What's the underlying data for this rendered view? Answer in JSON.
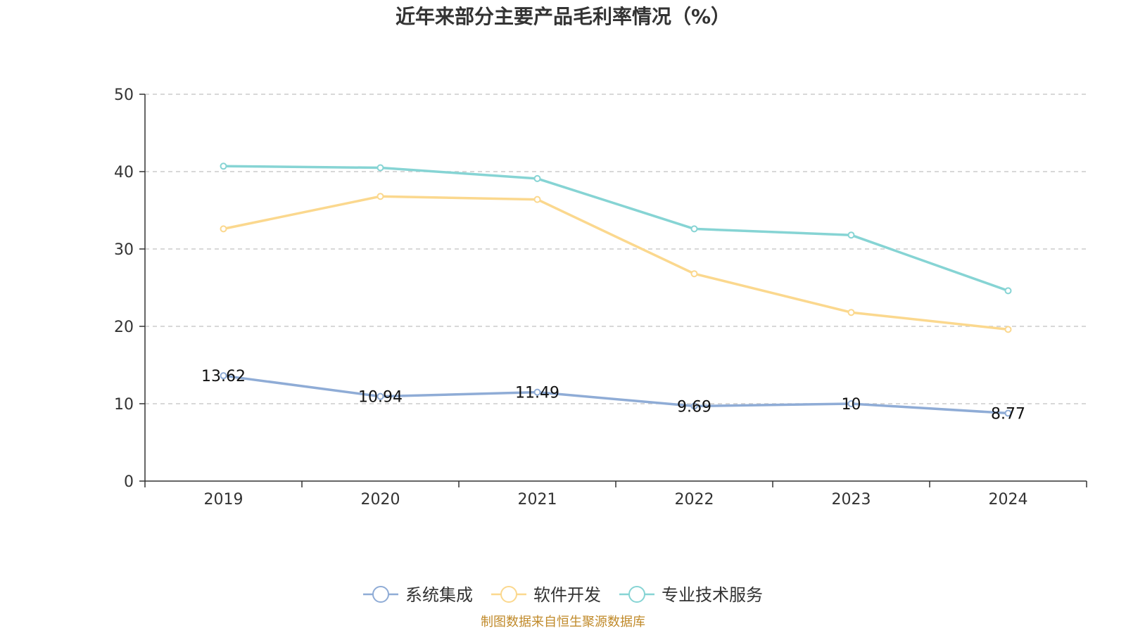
{
  "chart_data": {
    "type": "line",
    "title": "近年来部分主要产品毛利率情况（%）",
    "categories": [
      "2019",
      "2020",
      "2021",
      "2022",
      "2023",
      "2024"
    ],
    "ylim": [
      0,
      50
    ],
    "yticks": [
      0,
      10,
      20,
      30,
      40,
      50
    ],
    "grid": true,
    "legend_position": "bottom-center",
    "series": [
      {
        "name": "系统集成",
        "color": "#8facd6",
        "values": [
          13.62,
          10.94,
          11.49,
          9.69,
          10,
          8.77
        ],
        "data_labels": [
          "13.62",
          "10.94",
          "11.49",
          "9.69",
          "10",
          "8.77"
        ]
      },
      {
        "name": "软件开发",
        "color": "#fbd88e",
        "values": [
          32.6,
          36.8,
          36.4,
          26.8,
          21.8,
          19.6
        ]
      },
      {
        "name": "专业技术服务",
        "color": "#86d4d4",
        "values": [
          40.7,
          40.5,
          39.1,
          32.6,
          31.8,
          24.6
        ]
      }
    ],
    "source": "制图数据来自恒生聚源数据库"
  }
}
